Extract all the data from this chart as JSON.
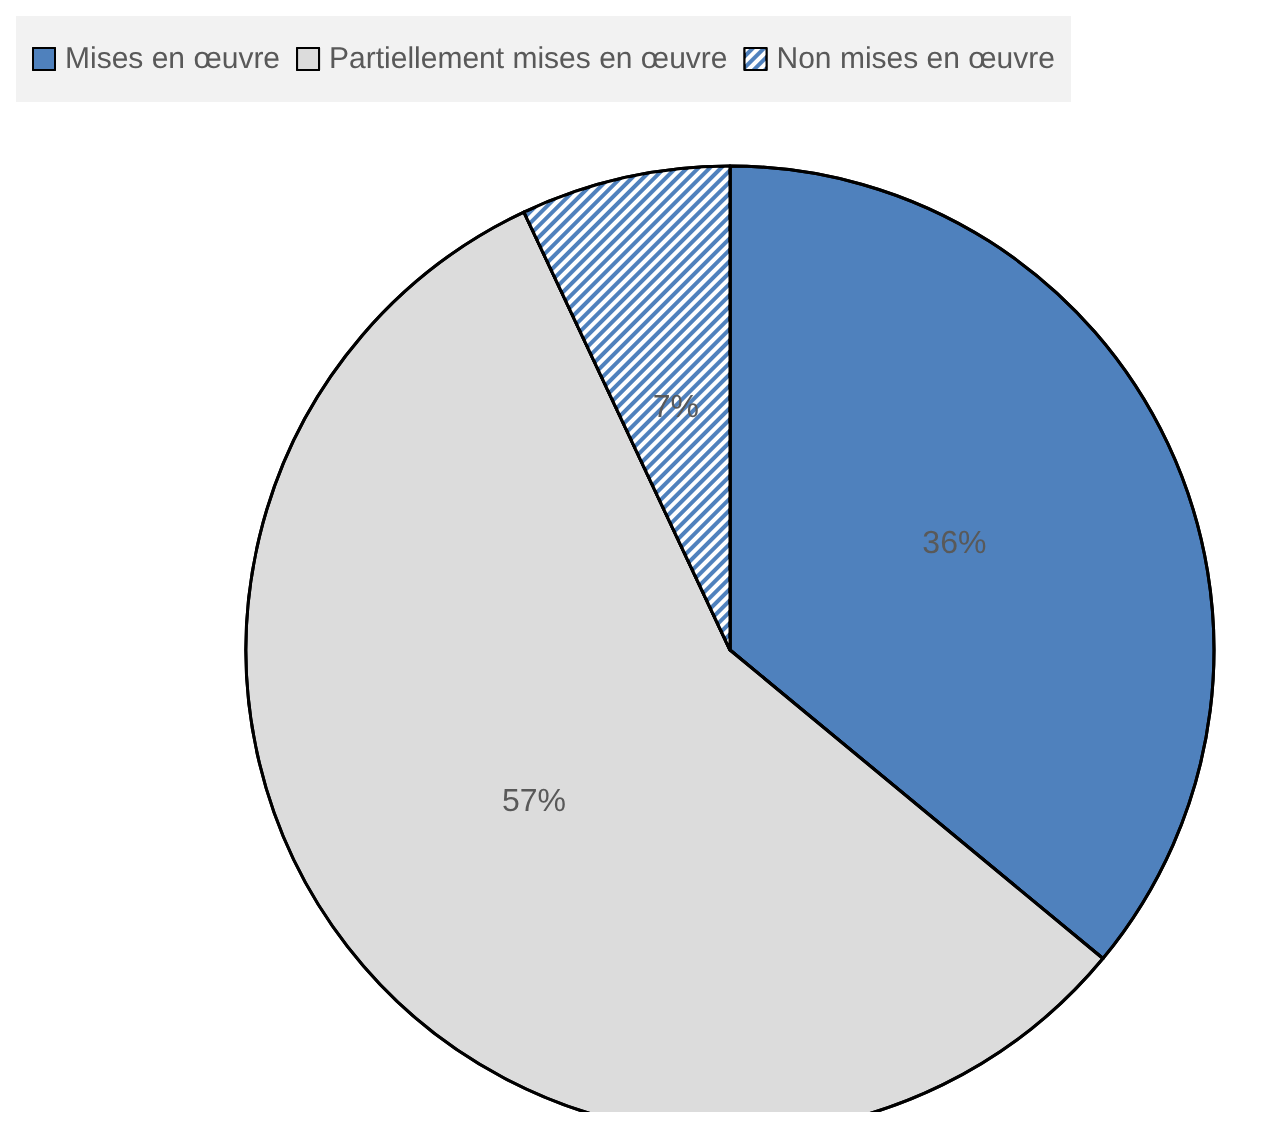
{
  "chart_data": {
    "type": "pie",
    "categories": [
      "Mises en œuvre",
      "Partiellement mises en œuvre",
      "Non mises en œuvre"
    ],
    "values": [
      36,
      57,
      7
    ],
    "colors": [
      "#4f81bd",
      "#dcdcdc",
      "#4f81bd"
    ],
    "value_labels": [
      "36%",
      "57%",
      "7%"
    ],
    "legend": "top"
  }
}
